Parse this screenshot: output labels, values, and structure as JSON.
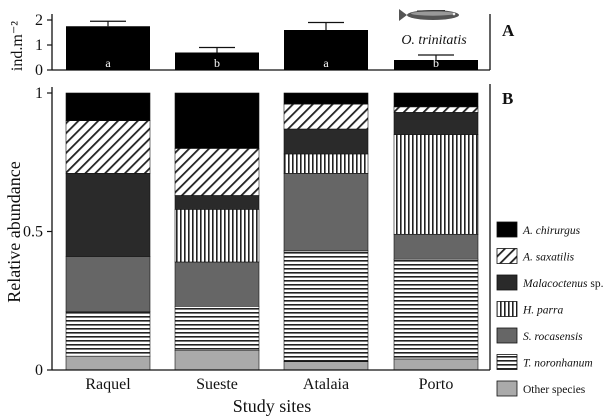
{
  "chart_data": [
    {
      "panel": "A",
      "type": "bar",
      "categories": [
        "Raquel",
        "Sueste",
        "Atalaia",
        "Porto"
      ],
      "values": [
        1.75,
        0.7,
        1.6,
        0.4
      ],
      "errors": [
        0.2,
        0.2,
        0.3,
        0.2
      ],
      "letters": [
        "a",
        "b",
        "a",
        "b"
      ],
      "ylabel": "ind.m⁻²",
      "ylim": [
        0,
        2
      ],
      "yticks": [
        "0",
        "1",
        "2"
      ],
      "species_label": "O. trinitatis",
      "color": "#000000"
    },
    {
      "panel": "B",
      "type": "bar",
      "stacked": true,
      "categories": [
        "Raquel",
        "Sueste",
        "Atalaia",
        "Porto"
      ],
      "xlabel": "Study sites",
      "ylabel": "Relative abundance",
      "ylim": [
        0,
        1
      ],
      "yticks": [
        "0",
        "0.5",
        "1"
      ],
      "legend_position": "right",
      "series": [
        {
          "name": "Other species",
          "values": [
            0.05,
            0.07,
            0.03,
            0.04
          ],
          "pattern": "solid-light"
        },
        {
          "name": "T. noronhanum",
          "values": [
            0.16,
            0.16,
            0.4,
            0.36
          ],
          "pattern": "hstripes"
        },
        {
          "name": "S. rocasensis",
          "values": [
            0.2,
            0.16,
            0.28,
            0.09
          ],
          "pattern": "solid-mid"
        },
        {
          "name": "H. parra",
          "values": [
            0.0,
            0.19,
            0.07,
            0.36
          ],
          "pattern": "vstripes"
        },
        {
          "name": "Malacoctenus sp.",
          "values": [
            0.3,
            0.05,
            0.09,
            0.08
          ],
          "pattern": "solid-dark"
        },
        {
          "name": "A. saxatilis",
          "values": [
            0.19,
            0.17,
            0.09,
            0.02
          ],
          "pattern": "diagonal"
        },
        {
          "name": "A. chirurgus",
          "values": [
            0.1,
            0.2,
            0.04,
            0.05
          ],
          "pattern": "solid-black"
        }
      ],
      "legend": [
        {
          "italic": "A. chirurgus",
          "plain": "",
          "pattern": "solid-black"
        },
        {
          "italic": "A. saxatilis",
          "plain": "",
          "pattern": "diagonal"
        },
        {
          "italic": "Malacoctenus",
          "plain": " sp.",
          "pattern": "solid-dark"
        },
        {
          "italic": "H. parra",
          "plain": "",
          "pattern": "vstripes"
        },
        {
          "italic": "S. rocasensis",
          "plain": "",
          "pattern": "solid-mid"
        },
        {
          "italic": "T. noronhanum",
          "plain": "",
          "pattern": "hstripes"
        },
        {
          "italic": "",
          "plain": "Other species",
          "pattern": "solid-light"
        }
      ]
    }
  ]
}
